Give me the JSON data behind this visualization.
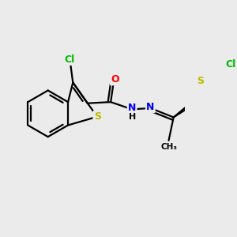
{
  "background_color": "#ebebeb",
  "bond_color": "#000000",
  "atom_colors": {
    "Cl": "#00bb00",
    "S": "#bbbb00",
    "O": "#ff0000",
    "N": "#0000ee",
    "H": "#000000",
    "C": "#000000"
  },
  "figsize": [
    3.0,
    3.0
  ],
  "dpi": 100,
  "lw": 1.6
}
